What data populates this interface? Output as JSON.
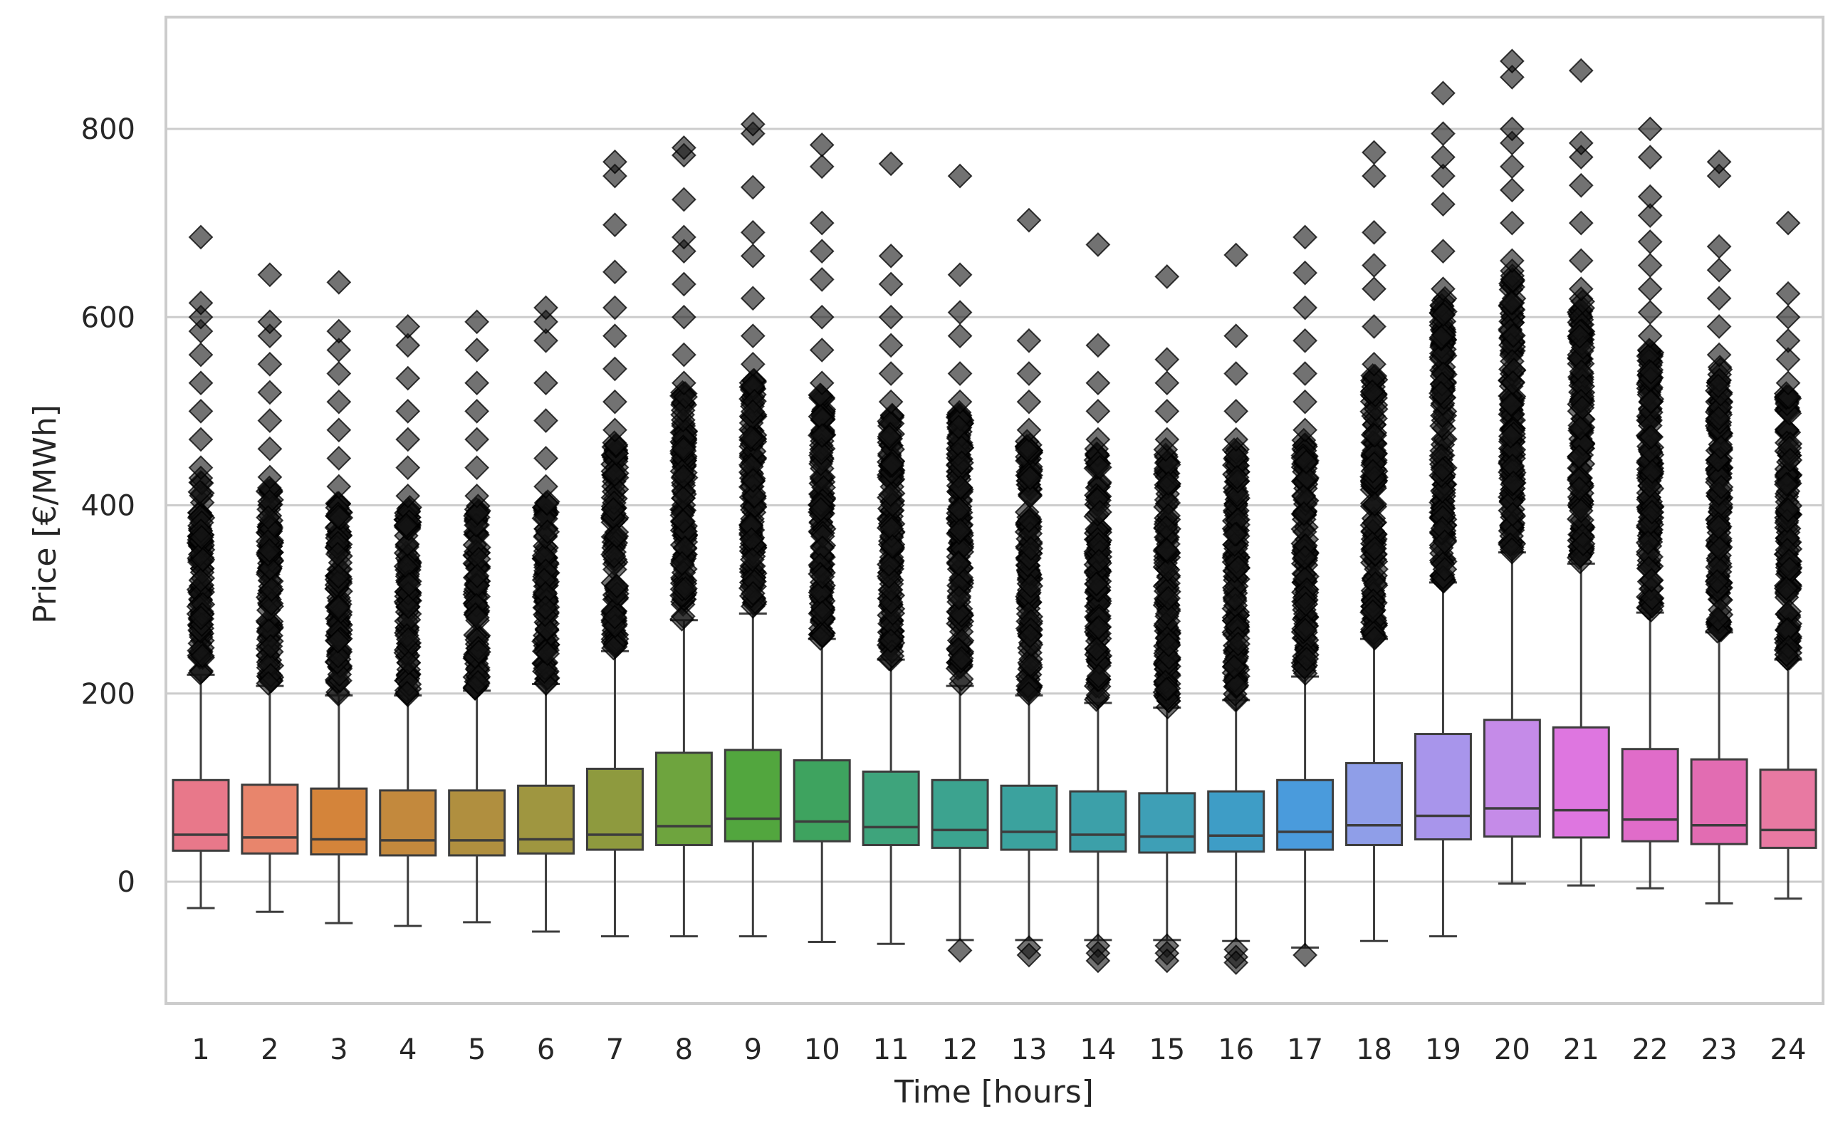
{
  "chart_data": {
    "type": "box",
    "title": "",
    "xlabel": "Time [hours]",
    "ylabel": "Price [€/MWh]",
    "ylim": [
      -130,
      920
    ],
    "yticks": [
      0,
      200,
      400,
      600,
      800
    ],
    "grid": true,
    "categories": [
      "1",
      "2",
      "3",
      "4",
      "5",
      "6",
      "7",
      "8",
      "9",
      "10",
      "11",
      "12",
      "13",
      "14",
      "15",
      "16",
      "17",
      "18",
      "19",
      "20",
      "21",
      "22",
      "23",
      "24"
    ],
    "colors": [
      "#e8788a",
      "#e8856c",
      "#d4843a",
      "#c3893d",
      "#b08f3f",
      "#9f9640",
      "#8e9a3e",
      "#6ea43e",
      "#52a63e",
      "#3ea35f",
      "#3ea47c",
      "#3ca38f",
      "#3ba29e",
      "#3ca0a9",
      "#3e9fb6",
      "#3e9dc6",
      "#4a9bdc",
      "#8f9ee8",
      "#a895eb",
      "#c58be8",
      "#de76e0",
      "#e06cc9",
      "#e26cb2",
      "#e879a2"
    ],
    "series": [
      {
        "name": "1",
        "whislo": -28,
        "q1": 33,
        "median": 50,
        "q3": 108,
        "whishi": 220,
        "flier_top": 430,
        "outliers": [
          440,
          470,
          500,
          530,
          560,
          585,
          600,
          615,
          685
        ]
      },
      {
        "name": "2",
        "whislo": -32,
        "q1": 30,
        "median": 47,
        "q3": 103,
        "whishi": 208,
        "flier_top": 420,
        "outliers": [
          430,
          460,
          490,
          520,
          550,
          580,
          595,
          645
        ]
      },
      {
        "name": "3",
        "whislo": -44,
        "q1": 29,
        "median": 45,
        "q3": 99,
        "whishi": 198,
        "flier_top": 410,
        "outliers": [
          420,
          450,
          480,
          510,
          540,
          565,
          585,
          637
        ]
      },
      {
        "name": "4",
        "whislo": -47,
        "q1": 28,
        "median": 44,
        "q3": 97,
        "whishi": 198,
        "flier_top": 400,
        "outliers": [
          410,
          440,
          470,
          500,
          535,
          570,
          590
        ]
      },
      {
        "name": "5",
        "whislo": -43,
        "q1": 28,
        "median": 44,
        "q3": 97,
        "whishi": 203,
        "flier_top": 400,
        "outliers": [
          410,
          440,
          470,
          500,
          530,
          565,
          595
        ]
      },
      {
        "name": "6",
        "whislo": -53,
        "q1": 30,
        "median": 45,
        "q3": 102,
        "whishi": 210,
        "flier_top": 410,
        "outliers": [
          420,
          450,
          490,
          530,
          575,
          595,
          610
        ]
      },
      {
        "name": "7",
        "whislo": -58,
        "q1": 34,
        "median": 50,
        "q3": 120,
        "whishi": 245,
        "flier_top": 470,
        "outliers": [
          480,
          510,
          545,
          580,
          610,
          648,
          698,
          750,
          765
        ]
      },
      {
        "name": "8",
        "whislo": -58,
        "q1": 39,
        "median": 59,
        "q3": 137,
        "whishi": 278,
        "flier_top": 520,
        "outliers": [
          530,
          560,
          600,
          635,
          670,
          685,
          725,
          772,
          780
        ]
      },
      {
        "name": "9",
        "whislo": -58,
        "q1": 43,
        "median": 67,
        "q3": 140,
        "whishi": 285,
        "flier_top": 540,
        "outliers": [
          550,
          580,
          620,
          665,
          690,
          738,
          795,
          805
        ]
      },
      {
        "name": "10",
        "whislo": -64,
        "q1": 43,
        "median": 64,
        "q3": 129,
        "whishi": 258,
        "flier_top": 520,
        "outliers": [
          530,
          565,
          600,
          640,
          670,
          700,
          760,
          783
        ]
      },
      {
        "name": "11",
        "whislo": -66,
        "q1": 39,
        "median": 58,
        "q3": 117,
        "whishi": 236,
        "flier_top": 500,
        "outliers": [
          510,
          540,
          570,
          600,
          635,
          665,
          763
        ]
      },
      {
        "name": "12",
        "whislo": -62,
        "q1": 36,
        "median": 55,
        "q3": 108,
        "whishi": 208,
        "flier_top": 500,
        "outliers": [
          -73,
          510,
          540,
          580,
          605,
          645,
          750
        ]
      },
      {
        "name": "13",
        "whislo": -62,
        "q1": 34,
        "median": 53,
        "q3": 102,
        "whishi": 198,
        "flier_top": 470,
        "outliers": [
          -70,
          -78,
          480,
          510,
          540,
          575,
          703
        ]
      },
      {
        "name": "14",
        "whislo": -62,
        "q1": 32,
        "median": 50,
        "q3": 96,
        "whishi": 190,
        "flier_top": 460,
        "outliers": [
          -68,
          -76,
          -84,
          470,
          500,
          530,
          570,
          677
        ]
      },
      {
        "name": "15",
        "whislo": -62,
        "q1": 31,
        "median": 48,
        "q3": 94,
        "whishi": 185,
        "flier_top": 460,
        "outliers": [
          -68,
          -76,
          -84,
          470,
          500,
          530,
          555,
          643
        ]
      },
      {
        "name": "16",
        "whislo": -63,
        "q1": 32,
        "median": 49,
        "q3": 96,
        "whishi": 193,
        "flier_top": 460,
        "outliers": [
          -72,
          -80,
          -86,
          470,
          500,
          540,
          580,
          666
        ]
      },
      {
        "name": "17",
        "whislo": -70,
        "q1": 34,
        "median": 53,
        "q3": 108,
        "whishi": 218,
        "flier_top": 470,
        "outliers": [
          -78,
          480,
          510,
          540,
          575,
          610,
          647,
          685
        ]
      },
      {
        "name": "18",
        "whislo": -63,
        "q1": 39,
        "median": 60,
        "q3": 126,
        "whishi": 258,
        "flier_top": 540,
        "outliers": [
          550,
          590,
          630,
          655,
          690,
          750,
          775
        ]
      },
      {
        "name": "19",
        "whislo": -58,
        "q1": 45,
        "median": 70,
        "q3": 157,
        "whishi": 318,
        "flier_top": 620,
        "outliers": [
          630,
          670,
          720,
          750,
          770,
          795,
          838
        ]
      },
      {
        "name": "20",
        "whislo": -2,
        "q1": 48,
        "median": 78,
        "q3": 172,
        "whishi": 350,
        "flier_top": 650,
        "outliers": [
          660,
          700,
          735,
          760,
          785,
          800,
          855,
          872
        ]
      },
      {
        "name": "21",
        "whislo": -4,
        "q1": 47,
        "median": 76,
        "q3": 164,
        "whishi": 338,
        "flier_top": 620,
        "outliers": [
          630,
          660,
          700,
          740,
          770,
          785,
          862
        ]
      },
      {
        "name": "22",
        "whislo": -7,
        "q1": 43,
        "median": 66,
        "q3": 141,
        "whishi": 286,
        "flier_top": 570,
        "outliers": [
          580,
          605,
          630,
          655,
          680,
          708,
          728,
          770,
          800
        ]
      },
      {
        "name": "23",
        "whislo": -23,
        "q1": 40,
        "median": 60,
        "q3": 130,
        "whishi": 265,
        "flier_top": 550,
        "outliers": [
          560,
          590,
          620,
          650,
          675,
          750,
          765
        ]
      },
      {
        "name": "24",
        "whislo": -18,
        "q1": 36,
        "median": 55,
        "q3": 119,
        "whishi": 236,
        "flier_top": 520,
        "outliers": [
          530,
          555,
          575,
          600,
          625,
          700
        ]
      }
    ]
  }
}
